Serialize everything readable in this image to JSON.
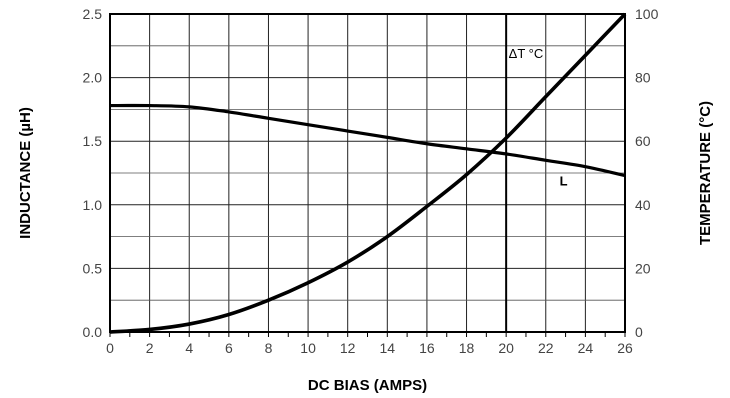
{
  "chart_data": {
    "type": "line",
    "xlabel": "DC BIAS (AMPS)",
    "ylabel_left": "INDUCTANCE (µH)",
    "ylabel_right": "TEMPERATURE (°C)",
    "xlim": [
      0,
      26
    ],
    "ylim_left": [
      0,
      2.5
    ],
    "ylim_right": [
      0,
      100
    ],
    "x_ticks": [
      "0",
      "2",
      "4",
      "6",
      "8",
      "10",
      "12",
      "14",
      "16",
      "18",
      "20",
      "22",
      "24",
      "26"
    ],
    "y_left_ticks": [
      "0.0",
      "0.5",
      "1.0",
      "1.5",
      "2.0",
      "2.5"
    ],
    "y_right_ticks": [
      "0",
      "20",
      "40",
      "60",
      "80",
      "100"
    ],
    "grid": true,
    "series": [
      {
        "name": "L",
        "axis": "left",
        "x": [
          0,
          2,
          4,
          6,
          8,
          10,
          12,
          14,
          16,
          18,
          20,
          22,
          24,
          26
        ],
        "y": [
          1.78,
          1.78,
          1.77,
          1.73,
          1.68,
          1.63,
          1.58,
          1.53,
          1.48,
          1.44,
          1.4,
          1.35,
          1.3,
          1.23
        ]
      },
      {
        "name": "ΔT °C",
        "axis": "right",
        "x": [
          0,
          2,
          4,
          6,
          8,
          10,
          12,
          14,
          16,
          18,
          20,
          22,
          24,
          26
        ],
        "y": [
          0,
          0.8,
          2.5,
          5.5,
          10,
          15.5,
          22,
          30,
          39.5,
          49.5,
          61,
          74,
          87,
          100
        ]
      }
    ],
    "annotations": [
      {
        "text": "ΔT °C",
        "x": 21
      },
      {
        "text": "L",
        "x": 22.7
      }
    ],
    "marker_x": 20
  }
}
